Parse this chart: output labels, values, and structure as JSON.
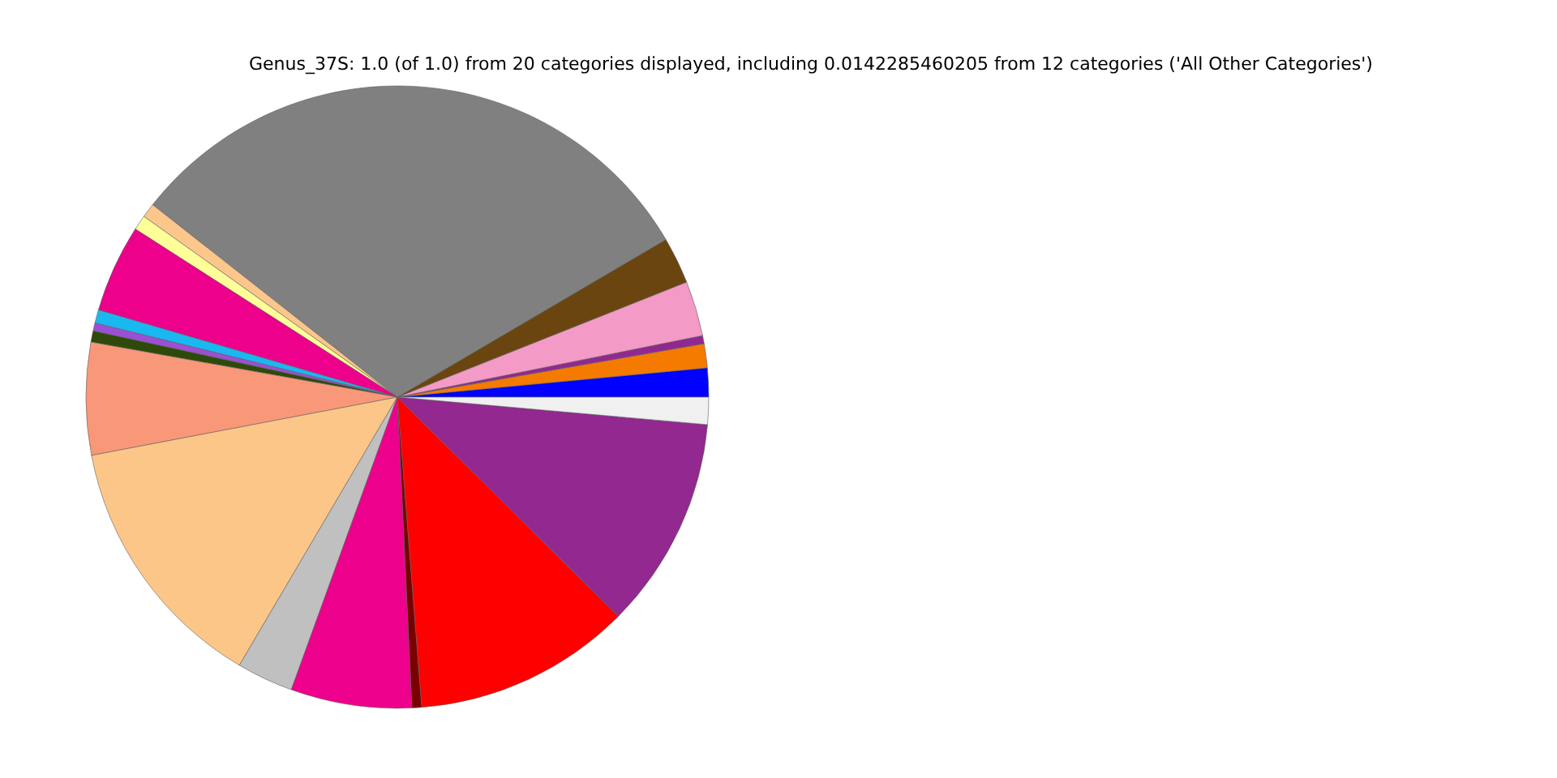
{
  "chart_data": {
    "type": "pie",
    "title": "Genus_37S: 1.0 (of 1.0) from 20 categories displayed, including 0.0142285460205 from 12 categories ('All Other Categories')",
    "categories": [
      null,
      null,
      null,
      null,
      null,
      null,
      null,
      null,
      null,
      null,
      null,
      null,
      null,
      null,
      null,
      null,
      null,
      null,
      null,
      null
    ],
    "values": [
      1.5,
      1.25,
      0.42,
      2.86,
      2.42,
      30.94,
      0.75,
      0.78,
      4.56,
      0.69,
      0.42,
      0.58,
      5.83,
      13.53,
      2.94,
      6.28,
      0.5,
      11.31,
      11.03,
      1.41
    ],
    "colors": [
      "#0000ff",
      "#f47a00",
      "#912891",
      "#f49ac6",
      "#6b4510",
      "#808080",
      "#fdc68a",
      "#ffff99",
      "#ec008c",
      "#1ab8f0",
      "#9b4fd4",
      "#2e4a0a",
      "#f99779",
      "#fdc689",
      "#c0c0c0",
      "#ec008c",
      "#7a0000",
      "#ff0000",
      "#922890",
      "#f0f0f0"
    ]
  }
}
